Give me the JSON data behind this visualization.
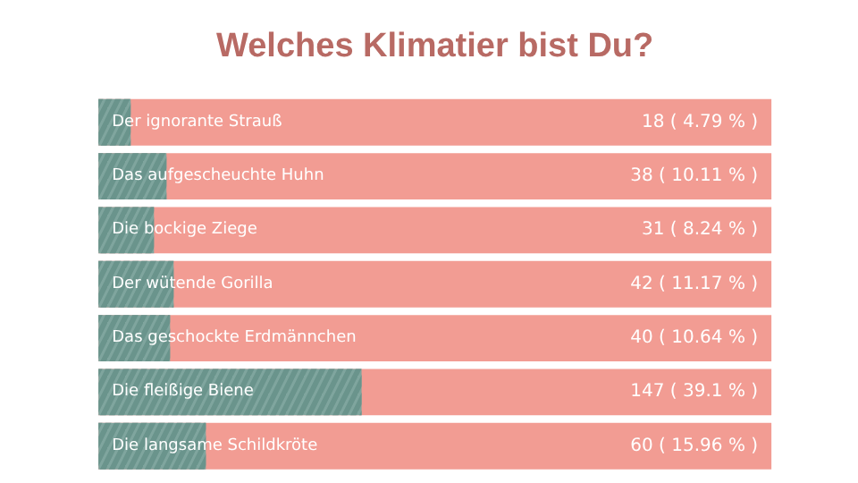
{
  "chart_data": {
    "type": "bar",
    "orientation": "horizontal",
    "title": "Welches Klimatier bist Du?",
    "categories": [
      "Der ignorante Strauß",
      "Das aufgescheuchte Huhn",
      "Die bockige Ziege",
      "Der wütende Gorilla",
      "Das geschockte Erdmännchen",
      "Die fleißige Biene",
      "Die langsame Schildkröte"
    ],
    "series": [
      {
        "color": "#7fa59e",
        "values": [
          18,
          38,
          31,
          42,
          40,
          147,
          60
        ],
        "value_labels": [
          "18 ( 4.79 % )",
          "38 ( 10.11 % )",
          "31 ( 8.24 % )",
          "42 ( 11.17 % )",
          "40 ( 10.64 % )",
          "147 ( 39.1 % )",
          "60 ( 15.96 % )"
        ]
      }
    ],
    "xlim": [
      0,
      376
    ],
    "tick_labels": false,
    "grid": false
  }
}
